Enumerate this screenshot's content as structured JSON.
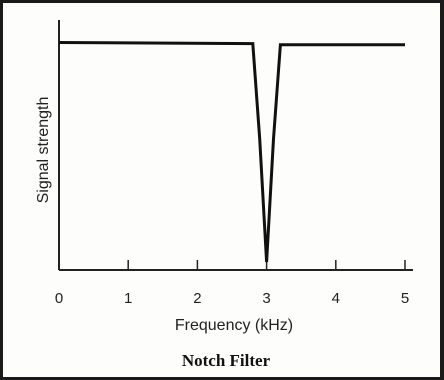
{
  "chart_data": {
    "type": "line",
    "title": "Notch Filter",
    "xlabel": "Frequency (kHz)",
    "ylabel": "Signal strength",
    "xlim": [
      0,
      5.2
    ],
    "ylim": [
      0,
      1
    ],
    "x_ticks": [
      "0",
      "1",
      "2",
      "3",
      "4",
      "5"
    ],
    "grid": false,
    "series": [
      {
        "x": [
          0,
          2.8,
          2.9,
          3.0,
          3.1,
          3.2,
          5.0
        ],
        "values": [
          0.98,
          0.975,
          0.55,
          0.0,
          0.55,
          0.97,
          0.97
        ]
      }
    ]
  }
}
